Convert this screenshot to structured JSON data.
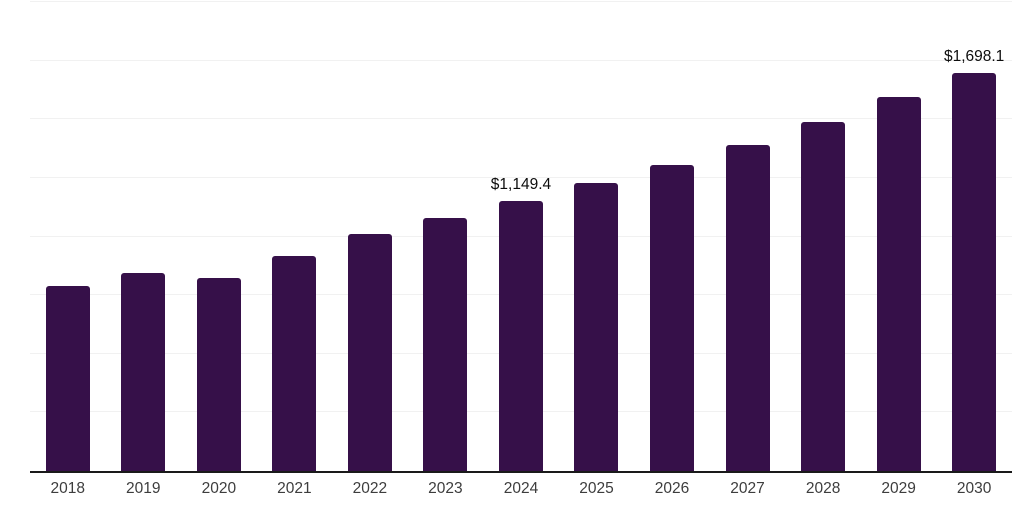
{
  "chart_data": {
    "type": "bar",
    "title": "",
    "xlabel": "",
    "ylabel": "",
    "categories": [
      "2018",
      "2019",
      "2020",
      "2021",
      "2022",
      "2023",
      "2024",
      "2025",
      "2026",
      "2027",
      "2028",
      "2029",
      "2030"
    ],
    "values": [
      787,
      843,
      821,
      919,
      1012,
      1081,
      1149.4,
      1227,
      1305,
      1389,
      1490,
      1595,
      1698.1
    ],
    "value_labels": [
      "",
      "",
      "",
      "",
      "",
      "",
      "$1,149.4",
      "",
      "",
      "",
      "",
      "",
      "$1,698.1"
    ],
    "ylim": [
      0,
      2000
    ],
    "gridline_interval": 250,
    "grid": "horizontal",
    "legend": "none",
    "y_axis_tick_labels_visible": false,
    "bar_color": "#361049",
    "axis_line_color": "#1a1a1a",
    "gridline_color": "#f1f1f1",
    "data_label_color": "#0d0d0d",
    "x_tick_label_color": "#3d3d3d",
    "background_color": "#ffffff"
  }
}
